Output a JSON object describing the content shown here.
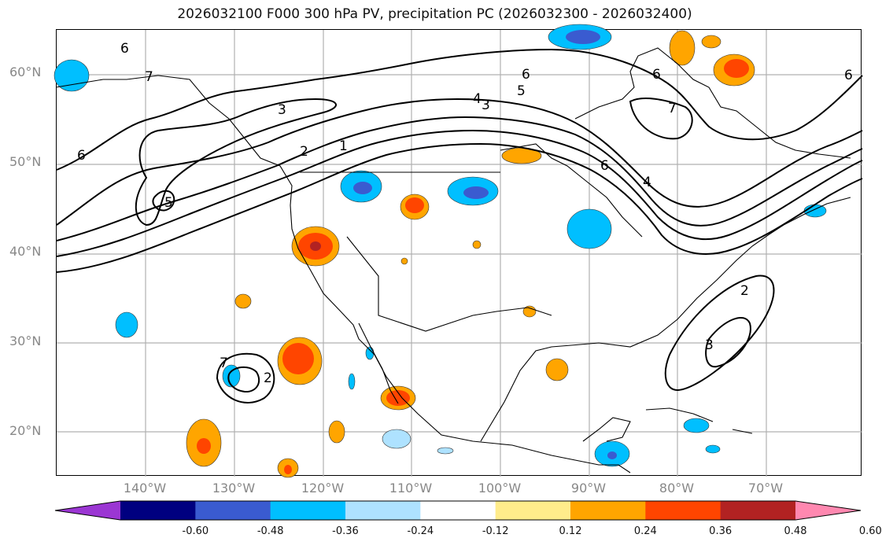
{
  "title": "2026032100 F000 300 hPa PV, precipitation PC (2026032300 - 2026032400)",
  "lat_labels": [
    "60°N",
    "50°N",
    "40°N",
    "30°N",
    "20°N"
  ],
  "lon_labels": [
    "140°W",
    "130°W",
    "120°W",
    "110°W",
    "100°W",
    "90°W",
    "80°W",
    "70°W"
  ],
  "contour_labels": [
    "6",
    "7",
    "6",
    "5",
    "3",
    "2",
    "1",
    "6",
    "5",
    "4",
    "3",
    "6",
    "7",
    "6",
    "4",
    "6",
    "2",
    "3",
    "2",
    "7"
  ],
  "colorbar": {
    "ticks": [
      "-0.60",
      "-0.48",
      "-0.36",
      "-0.24",
      "-0.12",
      "0.12",
      "0.24",
      "0.36",
      "0.48",
      "0.60"
    ],
    "colors": [
      "#9b36d3",
      "#000080",
      "#3a5bd0",
      "#00bfff",
      "#aee2ff",
      "#ffffff",
      "#ffec8b",
      "#ffa500",
      "#ff4500",
      "#b22222",
      "#ff88b0"
    ]
  }
}
